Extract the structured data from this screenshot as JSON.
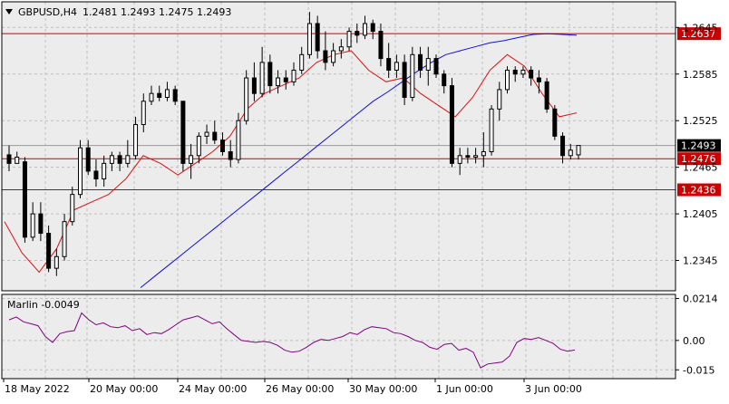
{
  "chart_title": {
    "symbol": "GBPUSD,H4",
    "ohlc": "1.2481 1.2493 1.2475 1.2493"
  },
  "indicator": {
    "label": "Marlin -0.0049",
    "color": "#800080"
  },
  "colors": {
    "background": "#ffffff",
    "plot_background": "#ececec",
    "grid": "#bfbfbf",
    "level_line": "#cc0000",
    "ma_slow": "#1010dd",
    "ma_fast": "#dd1010",
    "current_price_line": "#9a9a9a",
    "candle_up": "#ffffff",
    "candle_down": "#000000"
  },
  "chart_data": [
    {
      "type": "candlestick",
      "title": "",
      "symbol": "GBPUSD",
      "timeframe": "H4",
      "y_ticks": [
        1.2645,
        1.2585,
        1.2525,
        1.2465,
        1.2405,
        1.2345
      ],
      "ylim": [
        1.2306,
        1.2678
      ],
      "x_labels": [
        "18 May 2022",
        "20 May 00:00",
        "24 May 00:00",
        "26 May 00:00",
        "30 May 00:00",
        "1 Jun 00:00",
        "3 Jun 00:00"
      ],
      "grid": true,
      "horizontal_levels": [
        {
          "value": 1.2637,
          "label": "1.2637"
        },
        {
          "value": 1.2476,
          "label": "1.2476"
        },
        {
          "value": 1.2436,
          "label": "1.2436"
        }
      ],
      "current_price": {
        "value": 1.2493,
        "label": "1.2493"
      },
      "candles": [
        [
          1.2481,
          1.2493,
          1.246,
          1.247
        ],
        [
          1.247,
          1.2485,
          1.247,
          1.2478
        ],
        [
          1.2472,
          1.2478,
          1.2368,
          1.2375
        ],
        [
          1.2375,
          1.242,
          1.237,
          1.2405
        ],
        [
          1.2405,
          1.242,
          1.237,
          1.238
        ],
        [
          1.238,
          1.239,
          1.233,
          1.2335
        ],
        [
          1.2335,
          1.236,
          1.2325,
          1.235
        ],
        [
          1.235,
          1.2405,
          1.2345,
          1.2395
        ],
        [
          1.2395,
          1.244,
          1.239,
          1.243
        ],
        [
          1.243,
          1.25,
          1.2425,
          1.249
        ],
        [
          1.249,
          1.25,
          1.2455,
          1.246
        ],
        [
          1.246,
          1.2475,
          1.244,
          1.245
        ],
        [
          1.245,
          1.248,
          1.244,
          1.247
        ],
        [
          1.247,
          1.2485,
          1.246,
          1.248
        ],
        [
          1.248,
          1.2485,
          1.246,
          1.247
        ],
        [
          1.247,
          1.25,
          1.2465,
          1.248
        ],
        [
          1.248,
          1.253,
          1.2475,
          1.252
        ],
        [
          1.252,
          1.256,
          1.251,
          1.255
        ],
        [
          1.255,
          1.257,
          1.2545,
          1.256
        ],
        [
          1.256,
          1.257,
          1.255,
          1.2555
        ],
        [
          1.2555,
          1.2575,
          1.255,
          1.2565
        ],
        [
          1.2565,
          1.257,
          1.2545,
          1.255
        ],
        [
          1.255,
          1.255,
          1.246,
          1.247
        ],
        [
          1.247,
          1.2495,
          1.245,
          1.248
        ],
        [
          1.248,
          1.251,
          1.247,
          1.2505
        ],
        [
          1.2505,
          1.252,
          1.2495,
          1.251
        ],
        [
          1.251,
          1.2525,
          1.2495,
          1.25
        ],
        [
          1.25,
          1.251,
          1.248,
          1.2485
        ],
        [
          1.2485,
          1.25,
          1.2465,
          1.2475
        ],
        [
          1.2475,
          1.2535,
          1.247,
          1.2525
        ],
        [
          1.2525,
          1.259,
          1.252,
          1.258
        ],
        [
          1.258,
          1.26,
          1.255,
          1.256
        ],
        [
          1.256,
          1.262,
          1.2555,
          1.26
        ],
        [
          1.26,
          1.261,
          1.256,
          1.257
        ],
        [
          1.257,
          1.259,
          1.256,
          1.258
        ],
        [
          1.258,
          1.259,
          1.2565,
          1.2575
        ],
        [
          1.2575,
          1.26,
          1.257,
          1.259
        ],
        [
          1.259,
          1.262,
          1.2585,
          1.261
        ],
        [
          1.261,
          1.2665,
          1.2605,
          1.265
        ],
        [
          1.265,
          1.266,
          1.2605,
          1.2615
        ],
        [
          1.2615,
          1.264,
          1.259,
          1.26
        ],
        [
          1.26,
          1.2625,
          1.2595,
          1.2615
        ],
        [
          1.2615,
          1.263,
          1.2605,
          1.262
        ],
        [
          1.262,
          1.2645,
          1.2615,
          1.264
        ],
        [
          1.264,
          1.265,
          1.2625,
          1.2635
        ],
        [
          1.2635,
          1.266,
          1.263,
          1.265
        ],
        [
          1.265,
          1.2655,
          1.263,
          1.264
        ],
        [
          1.264,
          1.265,
          1.2595,
          1.2605
        ],
        [
          1.2605,
          1.2625,
          1.258,
          1.259
        ],
        [
          1.259,
          1.261,
          1.258,
          1.26
        ],
        [
          1.26,
          1.261,
          1.2545,
          1.2555
        ],
        [
          1.2555,
          1.262,
          1.255,
          1.261
        ],
        [
          1.261,
          1.262,
          1.258,
          1.259
        ],
        [
          1.259,
          1.262,
          1.257,
          1.2605
        ],
        [
          1.2605,
          1.261,
          1.258,
          1.2585
        ],
        [
          1.2585,
          1.259,
          1.256,
          1.257
        ],
        [
          1.257,
          1.258,
          1.2465,
          1.247
        ],
        [
          1.247,
          1.249,
          1.2455,
          1.248
        ],
        [
          1.248,
          1.249,
          1.247,
          1.2478
        ],
        [
          1.2478,
          1.249,
          1.247,
          1.248
        ],
        [
          1.248,
          1.251,
          1.2465,
          1.2485
        ],
        [
          1.2485,
          1.2545,
          1.248,
          1.254
        ],
        [
          1.254,
          1.2575,
          1.2525,
          1.2565
        ],
        [
          1.2565,
          1.2595,
          1.256,
          1.259
        ],
        [
          1.259,
          1.2595,
          1.2575,
          1.2585
        ],
        [
          1.2585,
          1.2595,
          1.258,
          1.259
        ],
        [
          1.259,
          1.2595,
          1.257,
          1.258
        ],
        [
          1.258,
          1.259,
          1.256,
          1.2575
        ],
        [
          1.2575,
          1.258,
          1.2535,
          1.254
        ],
        [
          1.254,
          1.2545,
          1.25,
          1.2505
        ],
        [
          1.2505,
          1.251,
          1.247,
          1.248
        ],
        [
          1.248,
          1.2495,
          1.2475,
          1.2487
        ],
        [
          1.2481,
          1.2493,
          1.2475,
          1.2493
        ]
      ],
      "series": [
        {
          "style": "ma_slow",
          "values": [
            1.231,
            1.2325,
            1.234,
            1.2355,
            1.237,
            1.2385,
            1.24,
            1.2415,
            1.243,
            1.2445,
            1.246,
            1.2475,
            1.249,
            1.2505,
            1.252,
            1.2535,
            1.255,
            1.2562,
            1.2575,
            1.2588,
            1.26,
            1.261,
            1.2615,
            1.262,
            1.2625,
            1.2628,
            1.2632,
            1.2636,
            1.2637,
            1.2636,
            1.2635
          ]
        },
        {
          "style": "ma_fast",
          "values": [
            1.2395,
            1.2355,
            1.233,
            1.236,
            1.241,
            1.242,
            1.243,
            1.245,
            1.248,
            1.247,
            1.2455,
            1.247,
            1.2485,
            1.2505,
            1.254,
            1.256,
            1.257,
            1.258,
            1.26,
            1.261,
            1.2615,
            1.259,
            1.2575,
            1.258,
            1.256,
            1.2545,
            1.253,
            1.2555,
            1.259,
            1.261,
            1.2595,
            1.256,
            1.253,
            1.2535
          ]
        }
      ]
    },
    {
      "type": "line",
      "title": "Marlin -0.0049",
      "y_ticks": [
        0.0214,
        0.0,
        -0.015
      ],
      "y_tick_labels": [
        "0.0214",
        "0.00",
        "-0.015"
      ],
      "ylim": [
        -0.0195,
        0.0235
      ],
      "series": [
        {
          "name": "Marlin",
          "values": [
            0.0105,
            0.012,
            0.0095,
            0.0085,
            0.0075,
            0.002,
            -0.001,
            0.0035,
            0.0045,
            0.005,
            0.014,
            0.0105,
            0.008,
            0.009,
            0.007,
            0.0065,
            0.0075,
            0.005,
            0.006,
            0.003,
            0.004,
            0.0035,
            0.0055,
            0.008,
            0.0105,
            0.0115,
            0.0125,
            0.0105,
            0.0085,
            0.0095,
            0.006,
            0.003,
            0.0,
            -0.0005,
            -0.001,
            -0.0005,
            -0.001,
            -0.0025,
            -0.005,
            -0.006,
            -0.0055,
            -0.0035,
            -0.001,
            0.0005,
            0.0,
            0.001,
            0.002,
            0.004,
            0.003,
            0.0055,
            0.007,
            0.0065,
            0.006,
            0.004,
            0.0035,
            0.002,
            0.0,
            -0.001,
            -0.0035,
            -0.0045,
            -0.002,
            -0.0015,
            -0.005,
            -0.004,
            -0.006,
            -0.014,
            -0.012,
            -0.0115,
            -0.011,
            -0.008,
            -0.001,
            0.001,
            0.0005,
            0.0015,
            0.0,
            -0.0015,
            -0.0045,
            -0.0055,
            -0.0049
          ]
        }
      ]
    }
  ]
}
